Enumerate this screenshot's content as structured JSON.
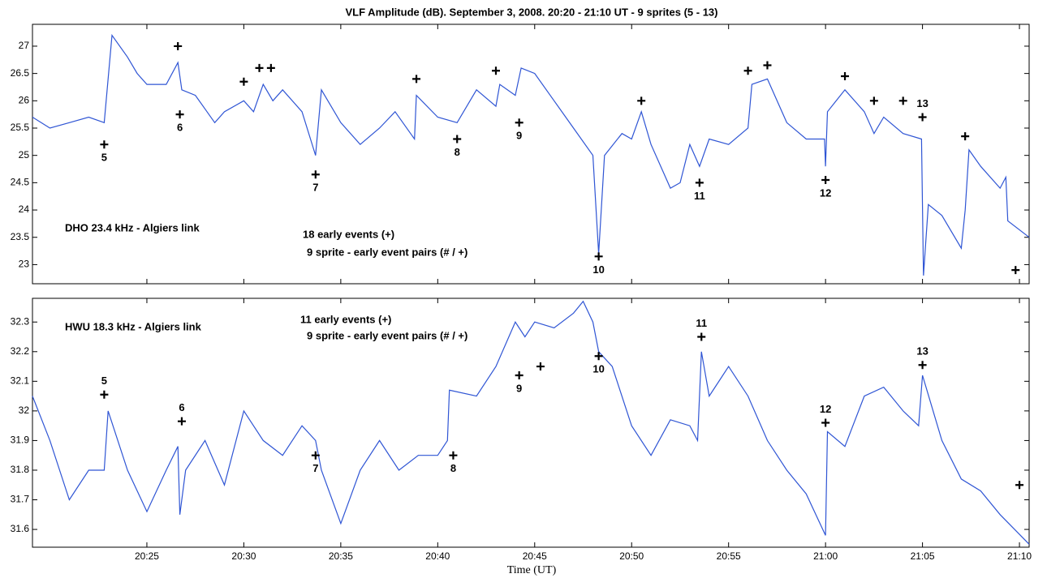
{
  "chart_data": {
    "type": "line",
    "title": "VLF Amplitude (dB). September 3, 2008. 20:20 - 21:10 UT  - 9 sprites    (5 - 13)",
    "xlabel": "Time (UT)",
    "xlim": [
      1219.1,
      1270.5
    ],
    "xticks": [
      {
        "value": 1225,
        "label": "20:25"
      },
      {
        "value": 1230,
        "label": "20:30"
      },
      {
        "value": 1235,
        "label": "20:35"
      },
      {
        "value": 1240,
        "label": "20:40"
      },
      {
        "value": 1245,
        "label": "20:45"
      },
      {
        "value": 1250,
        "label": "20:50"
      },
      {
        "value": 1255,
        "label": "20:55"
      },
      {
        "value": 1260,
        "label": "21:00"
      },
      {
        "value": 1265,
        "label": "21:05"
      },
      {
        "value": 1270,
        "label": "21:10"
      }
    ],
    "panels": [
      {
        "notes": [
          "DHO 23.4 kHz  - Algiers link",
          "18 early events (+)",
          "9 sprite - early event pairs  (# / +)"
        ],
        "ylim": [
          22.65,
          27.4
        ],
        "yticks": [
          23,
          23.5,
          24,
          24.5,
          25,
          25.5,
          26,
          26.5,
          27
        ],
        "series": [
          {
            "color": "#2f55d4",
            "x": [
              1219.1,
              1220,
              1221,
              1222,
              1222.8,
              1223.2,
              1224,
              1224.5,
              1225,
              1226,
              1226.6,
              1226.8,
              1227.5,
              1228.5,
              1229,
              1230,
              1230.5,
              1231,
              1231.5,
              1232,
              1233,
              1233.7,
              1234,
              1235,
              1236,
              1237,
              1237.8,
              1238.8,
              1238.9,
              1240,
              1241,
              1242,
              1243,
              1243.2,
              1244,
              1244.3,
              1245,
              1246,
              1247,
              1248,
              1248.3,
              1248.6,
              1249.5,
              1250,
              1250.5,
              1251,
              1252,
              1252.5,
              1253,
              1253.5,
              1254,
              1255,
              1256,
              1256.2,
              1257,
              1258,
              1259,
              1259.95,
              1260,
              1260.1,
              1261,
              1262,
              1262.5,
              1263,
              1264,
              1264.95,
              1265.05,
              1265.3,
              1266,
              1267,
              1267.2,
              1267.4,
              1268,
              1269,
              1269.3,
              1269.4,
              1270.5
            ],
            "values": [
              25.7,
              25.5,
              25.6,
              25.7,
              25.6,
              27.2,
              26.8,
              26.5,
              26.3,
              26.3,
              26.7,
              26.2,
              26.1,
              25.6,
              25.8,
              26.0,
              25.8,
              26.3,
              26.0,
              26.2,
              25.8,
              25.0,
              26.2,
              25.6,
              25.2,
              25.5,
              25.8,
              25.3,
              26.1,
              25.7,
              25.6,
              26.2,
              25.9,
              26.3,
              26.1,
              26.6,
              26.5,
              26.0,
              25.5,
              25.0,
              23.2,
              25.0,
              25.4,
              25.3,
              25.8,
              25.2,
              24.4,
              24.5,
              25.2,
              24.8,
              25.3,
              25.2,
              25.5,
              26.3,
              26.4,
              25.6,
              25.3,
              25.3,
              24.8,
              25.8,
              26.2,
              25.8,
              25.4,
              25.7,
              25.4,
              25.3,
              22.8,
              24.1,
              23.9,
              23.3,
              24.0,
              25.1,
              24.8,
              24.4,
              24.6,
              23.8,
              23.5
            ]
          }
        ],
        "markers": [
          {
            "x": 1222.8,
            "y": 25.2,
            "label": "5",
            "label_pos": "below"
          },
          {
            "x": 1226.6,
            "y": 27.0
          },
          {
            "x": 1226.7,
            "y": 25.75,
            "label": "6",
            "label_pos": "below"
          },
          {
            "x": 1230.0,
            "y": 26.35
          },
          {
            "x": 1230.8,
            "y": 26.6
          },
          {
            "x": 1231.4,
            "y": 26.6
          },
          {
            "x": 1233.7,
            "y": 24.65,
            "label": "7",
            "label_pos": "below"
          },
          {
            "x": 1238.9,
            "y": 26.4
          },
          {
            "x": 1241.0,
            "y": 25.3,
            "label": "8",
            "label_pos": "below"
          },
          {
            "x": 1243.0,
            "y": 26.55
          },
          {
            "x": 1244.2,
            "y": 25.6,
            "label": "9",
            "label_pos": "below"
          },
          {
            "x": 1248.3,
            "y": 23.15,
            "label": "10",
            "label_pos": "below"
          },
          {
            "x": 1250.5,
            "y": 26.0
          },
          {
            "x": 1253.5,
            "y": 24.5,
            "label": "11",
            "label_pos": "below"
          },
          {
            "x": 1256.0,
            "y": 26.55
          },
          {
            "x": 1257.0,
            "y": 26.65
          },
          {
            "x": 1260.0,
            "y": 24.55,
            "label": "12",
            "label_pos": "below"
          },
          {
            "x": 1261.0,
            "y": 26.45
          },
          {
            "x": 1262.5,
            "y": 26.0
          },
          {
            "x": 1264.0,
            "y": 26.0
          },
          {
            "x": 1265.0,
            "y": 25.7,
            "label": "13",
            "label_pos": "above"
          },
          {
            "x": 1267.2,
            "y": 25.35
          },
          {
            "x": 1269.8,
            "y": 22.9
          }
        ]
      },
      {
        "notes": [
          "HWU 18.3 kHz - Algiers link",
          "11 early events (+)",
          "9 sprite - early event pairs  (# / +)"
        ],
        "ylim": [
          31.54,
          32.38
        ],
        "yticks": [
          31.6,
          31.7,
          31.8,
          31.9,
          32,
          32.1,
          32.2,
          32.3
        ],
        "series": [
          {
            "color": "#2f55d4",
            "x": [
              1219.1,
              1220,
              1221,
              1222,
              1222.8,
              1223,
              1224,
              1225,
              1226,
              1226.6,
              1226.7,
              1227,
              1228,
              1229,
              1230,
              1231,
              1232,
              1233,
              1233.7,
              1234,
              1235,
              1236,
              1237,
              1238,
              1239,
              1240,
              1240.5,
              1240.6,
              1242,
              1243,
              1244,
              1244.5,
              1245,
              1246,
              1247,
              1247.5,
              1248,
              1248.3,
              1249,
              1250,
              1251,
              1252,
              1253,
              1253.4,
              1253.6,
              1254,
              1255,
              1256,
              1257,
              1258,
              1259,
              1260,
              1260.1,
              1261,
              1262,
              1263,
              1264,
              1264.8,
              1265,
              1266,
              1267,
              1268,
              1269,
              1270.5
            ],
            "values": [
              32.05,
              31.9,
              31.7,
              31.8,
              31.8,
              32.0,
              31.8,
              31.66,
              31.8,
              31.88,
              31.65,
              31.8,
              31.9,
              31.75,
              32.0,
              31.9,
              31.85,
              31.95,
              31.9,
              31.8,
              31.62,
              31.8,
              31.9,
              31.8,
              31.85,
              31.85,
              31.9,
              32.07,
              32.05,
              32.15,
              32.3,
              32.25,
              32.3,
              32.28,
              32.33,
              32.37,
              32.3,
              32.2,
              32.15,
              31.95,
              31.85,
              31.97,
              31.95,
              31.9,
              32.2,
              32.05,
              32.15,
              32.05,
              31.9,
              31.8,
              31.72,
              31.58,
              31.93,
              31.88,
              32.05,
              32.08,
              32.0,
              31.95,
              32.12,
              31.9,
              31.77,
              31.73,
              31.65,
              31.55
            ]
          }
        ],
        "markers": [
          {
            "x": 1222.8,
            "y": 32.055,
            "label": "5",
            "label_pos": "above"
          },
          {
            "x": 1226.8,
            "y": 31.965,
            "label": "6",
            "label_pos": "above"
          },
          {
            "x": 1233.7,
            "y": 31.85,
            "label": "7",
            "label_pos": "below"
          },
          {
            "x": 1240.8,
            "y": 31.85,
            "label": "8",
            "label_pos": "below"
          },
          {
            "x": 1244.2,
            "y": 32.12,
            "label": "9",
            "label_pos": "below"
          },
          {
            "x": 1245.3,
            "y": 32.15
          },
          {
            "x": 1248.3,
            "y": 32.185,
            "label": "10",
            "label_pos": "below"
          },
          {
            "x": 1253.6,
            "y": 32.25,
            "label": "11",
            "label_pos": "above"
          },
          {
            "x": 1260.0,
            "y": 31.96,
            "label": "12",
            "label_pos": "above"
          },
          {
            "x": 1265.0,
            "y": 32.155,
            "label": "13",
            "label_pos": "above"
          },
          {
            "x": 1270.0,
            "y": 31.75
          }
        ]
      }
    ]
  }
}
